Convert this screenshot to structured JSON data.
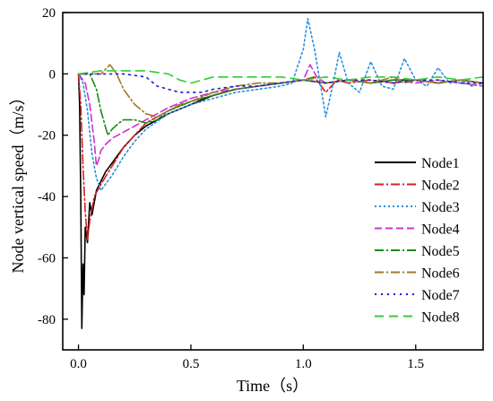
{
  "chart_data": {
    "type": "line",
    "xlabel": "Time（s）",
    "ylabel": "Node vertical speed（m/s）",
    "xlim": [
      -0.07,
      1.8
    ],
    "ylim": [
      -90,
      20
    ],
    "x_ticks": [
      "0.0",
      "0.5",
      "1.0",
      "1.5"
    ],
    "y_ticks": [
      "20",
      "0",
      "-20",
      "-40",
      "-60",
      "-80"
    ],
    "x_tick_values": [
      0,
      0.5,
      1.0,
      1.5
    ],
    "y_tick_values": [
      20,
      0,
      -20,
      -40,
      -60,
      -80
    ],
    "legend_position": "lower-right",
    "series": [
      {
        "name": "Node1",
        "color": "#000000",
        "dash": "solid",
        "points": [
          [
            0.0,
            0
          ],
          [
            0.005,
            -10
          ],
          [
            0.01,
            -40
          ],
          [
            0.015,
            -83
          ],
          [
            0.02,
            -62
          ],
          [
            0.025,
            -72
          ],
          [
            0.03,
            -50
          ],
          [
            0.04,
            -55
          ],
          [
            0.05,
            -42
          ],
          [
            0.06,
            -46
          ],
          [
            0.08,
            -38
          ],
          [
            0.1,
            -35
          ],
          [
            0.12,
            -32
          ],
          [
            0.15,
            -29
          ],
          [
            0.2,
            -24
          ],
          [
            0.25,
            -20
          ],
          [
            0.3,
            -17
          ],
          [
            0.4,
            -13
          ],
          [
            0.5,
            -10
          ],
          [
            0.6,
            -7
          ],
          [
            0.7,
            -5
          ],
          [
            0.8,
            -4
          ],
          [
            0.9,
            -3
          ],
          [
            1.0,
            -2
          ],
          [
            1.1,
            -3
          ],
          [
            1.2,
            -2
          ],
          [
            1.3,
            -3
          ],
          [
            1.4,
            -2
          ],
          [
            1.5,
            -2
          ],
          [
            1.6,
            -3
          ],
          [
            1.7,
            -2
          ],
          [
            1.8,
            -3
          ]
        ]
      },
      {
        "name": "Node2",
        "color": "#d62020",
        "dash": "10,3,2,3",
        "points": [
          [
            0.0,
            0
          ],
          [
            0.01,
            -10
          ],
          [
            0.02,
            -30
          ],
          [
            0.03,
            -45
          ],
          [
            0.04,
            -54
          ],
          [
            0.05,
            -48
          ],
          [
            0.06,
            -44
          ],
          [
            0.07,
            -40
          ],
          [
            0.1,
            -36
          ],
          [
            0.15,
            -30
          ],
          [
            0.2,
            -24
          ],
          [
            0.25,
            -20
          ],
          [
            0.3,
            -16
          ],
          [
            0.4,
            -12
          ],
          [
            0.5,
            -9
          ],
          [
            0.6,
            -7
          ],
          [
            0.7,
            -5
          ],
          [
            0.8,
            -4
          ],
          [
            0.9,
            -3
          ],
          [
            1.0,
            -2
          ],
          [
            1.05,
            -1
          ],
          [
            1.1,
            -6
          ],
          [
            1.15,
            -2
          ],
          [
            1.2,
            -3
          ],
          [
            1.3,
            -2
          ],
          [
            1.4,
            -3
          ],
          [
            1.5,
            -2
          ],
          [
            1.6,
            -3
          ],
          [
            1.7,
            -2
          ],
          [
            1.8,
            -3
          ]
        ]
      },
      {
        "name": "Node3",
        "color": "#2a8fe0",
        "dash": "2,3",
        "points": [
          [
            0.0,
            0
          ],
          [
            0.02,
            -3
          ],
          [
            0.04,
            -12
          ],
          [
            0.06,
            -26
          ],
          [
            0.08,
            -34
          ],
          [
            0.1,
            -38
          ],
          [
            0.12,
            -36
          ],
          [
            0.15,
            -33
          ],
          [
            0.2,
            -27
          ],
          [
            0.25,
            -22
          ],
          [
            0.3,
            -18
          ],
          [
            0.4,
            -13
          ],
          [
            0.5,
            -10
          ],
          [
            0.6,
            -8
          ],
          [
            0.7,
            -6
          ],
          [
            0.8,
            -5
          ],
          [
            0.9,
            -4
          ],
          [
            0.95,
            -3
          ],
          [
            1.0,
            8
          ],
          [
            1.02,
            18
          ],
          [
            1.05,
            8
          ],
          [
            1.08,
            -5
          ],
          [
            1.1,
            -14
          ],
          [
            1.13,
            -4
          ],
          [
            1.16,
            7
          ],
          [
            1.2,
            -3
          ],
          [
            1.25,
            -6
          ],
          [
            1.3,
            4
          ],
          [
            1.35,
            -4
          ],
          [
            1.4,
            -5
          ],
          [
            1.45,
            5
          ],
          [
            1.5,
            -2
          ],
          [
            1.55,
            -4
          ],
          [
            1.6,
            2
          ],
          [
            1.65,
            -3
          ],
          [
            1.7,
            -2
          ],
          [
            1.75,
            -4
          ],
          [
            1.8,
            -3
          ]
        ]
      },
      {
        "name": "Node4",
        "color": "#cc33cc",
        "dash": "8,4",
        "points": [
          [
            0.0,
            0
          ],
          [
            0.03,
            -3
          ],
          [
            0.05,
            -10
          ],
          [
            0.07,
            -22
          ],
          [
            0.08,
            -30
          ],
          [
            0.09,
            -28
          ],
          [
            0.1,
            -25
          ],
          [
            0.12,
            -23
          ],
          [
            0.15,
            -21
          ],
          [
            0.2,
            -19
          ],
          [
            0.25,
            -17
          ],
          [
            0.3,
            -15
          ],
          [
            0.4,
            -11
          ],
          [
            0.5,
            -8
          ],
          [
            0.6,
            -6
          ],
          [
            0.7,
            -5
          ],
          [
            0.8,
            -4
          ],
          [
            0.9,
            -3
          ],
          [
            1.0,
            -2
          ],
          [
            1.03,
            3
          ],
          [
            1.06,
            -1
          ],
          [
            1.1,
            -3
          ],
          [
            1.2,
            -2
          ],
          [
            1.3,
            -3
          ],
          [
            1.4,
            -2
          ],
          [
            1.5,
            -3
          ],
          [
            1.6,
            -2
          ],
          [
            1.7,
            -3
          ],
          [
            1.8,
            -4
          ]
        ]
      },
      {
        "name": "Node5",
        "color": "#1a8a1a",
        "dash": "10,3,2,3",
        "points": [
          [
            0.0,
            0
          ],
          [
            0.05,
            0
          ],
          [
            0.08,
            -5
          ],
          [
            0.1,
            -12
          ],
          [
            0.13,
            -20
          ],
          [
            0.15,
            -18
          ],
          [
            0.18,
            -16
          ],
          [
            0.2,
            -15
          ],
          [
            0.25,
            -15
          ],
          [
            0.3,
            -16
          ],
          [
            0.35,
            -15
          ],
          [
            0.4,
            -12
          ],
          [
            0.5,
            -9
          ],
          [
            0.6,
            -7
          ],
          [
            0.7,
            -5
          ],
          [
            0.8,
            -4
          ],
          [
            0.9,
            -3
          ],
          [
            1.0,
            -2
          ],
          [
            1.1,
            -3
          ],
          [
            1.2,
            -2
          ],
          [
            1.3,
            -3
          ],
          [
            1.4,
            -2
          ],
          [
            1.5,
            -2
          ],
          [
            1.6,
            -3
          ],
          [
            1.7,
            -2
          ],
          [
            1.8,
            -3
          ]
        ]
      },
      {
        "name": "Node6",
        "color": "#a0782a",
        "dash": "10,3,2,3",
        "points": [
          [
            0.0,
            0
          ],
          [
            0.1,
            0
          ],
          [
            0.14,
            3
          ],
          [
            0.17,
            0
          ],
          [
            0.2,
            -5
          ],
          [
            0.25,
            -10
          ],
          [
            0.3,
            -13
          ],
          [
            0.35,
            -14
          ],
          [
            0.4,
            -12
          ],
          [
            0.45,
            -10
          ],
          [
            0.5,
            -9
          ],
          [
            0.6,
            -6
          ],
          [
            0.7,
            -4
          ],
          [
            0.8,
            -3
          ],
          [
            0.9,
            -3
          ],
          [
            1.0,
            -2
          ],
          [
            1.1,
            -3
          ],
          [
            1.2,
            -2
          ],
          [
            1.3,
            -3
          ],
          [
            1.4,
            -1
          ],
          [
            1.45,
            -3
          ],
          [
            1.5,
            -2
          ],
          [
            1.6,
            -3
          ],
          [
            1.7,
            -2
          ],
          [
            1.8,
            -3
          ]
        ]
      },
      {
        "name": "Node7",
        "color": "#1a1ad0",
        "dash": "2,5",
        "points": [
          [
            0.0,
            0
          ],
          [
            0.2,
            0
          ],
          [
            0.3,
            -1
          ],
          [
            0.35,
            -4
          ],
          [
            0.4,
            -5
          ],
          [
            0.45,
            -6
          ],
          [
            0.5,
            -6
          ],
          [
            0.55,
            -6
          ],
          [
            0.6,
            -5
          ],
          [
            0.7,
            -4
          ],
          [
            0.8,
            -4
          ],
          [
            0.9,
            -3
          ],
          [
            1.0,
            -2
          ],
          [
            1.1,
            -3
          ],
          [
            1.2,
            -2
          ],
          [
            1.3,
            -2
          ],
          [
            1.4,
            -3
          ],
          [
            1.5,
            -2
          ],
          [
            1.6,
            -2
          ],
          [
            1.7,
            -3
          ],
          [
            1.8,
            -3
          ]
        ]
      },
      {
        "name": "Node8",
        "color": "#33cc33",
        "dash": "10,6",
        "points": [
          [
            0.0,
            0
          ],
          [
            0.1,
            1
          ],
          [
            0.2,
            1
          ],
          [
            0.3,
            1
          ],
          [
            0.4,
            0
          ],
          [
            0.45,
            -2
          ],
          [
            0.5,
            -3
          ],
          [
            0.55,
            -2
          ],
          [
            0.6,
            -1
          ],
          [
            0.7,
            -1
          ],
          [
            0.8,
            -1
          ],
          [
            0.9,
            -1
          ],
          [
            1.0,
            -2
          ],
          [
            1.1,
            -1
          ],
          [
            1.2,
            -2
          ],
          [
            1.3,
            -1
          ],
          [
            1.4,
            -1
          ],
          [
            1.5,
            -2
          ],
          [
            1.6,
            -1
          ],
          [
            1.7,
            -2
          ],
          [
            1.8,
            -1
          ]
        ]
      }
    ]
  }
}
